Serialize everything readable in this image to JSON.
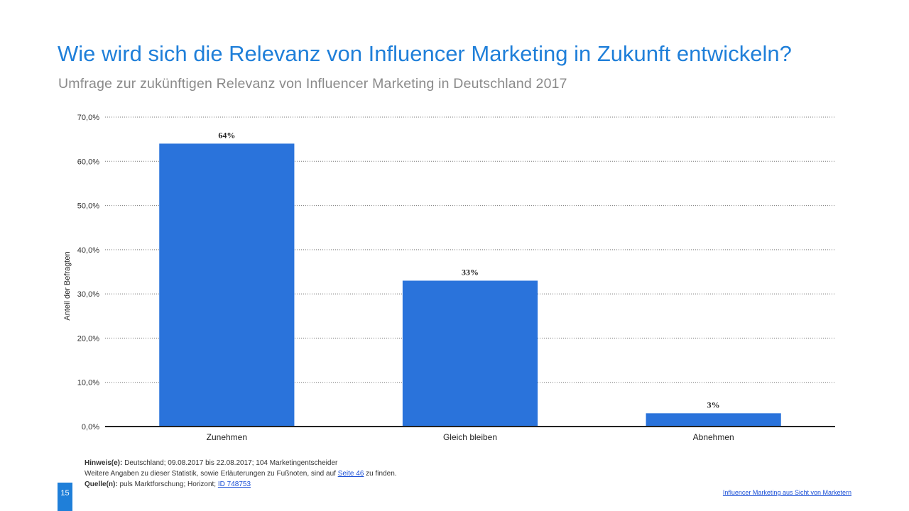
{
  "header": {
    "title": "Wie wird sich die Relevanz von Influencer Marketing in Zukunft entwickeln?",
    "subtitle": "Umfrage zur zukünftigen Relevanz von Influencer Marketing in Deutschland 2017"
  },
  "chart_data": {
    "type": "bar",
    "title": "",
    "xlabel": "",
    "ylabel": "Anteil der Befragten",
    "categories": [
      "Zunehmen",
      "Gleich bleiben",
      "Abnehmen"
    ],
    "values": [
      64,
      33,
      3
    ],
    "data_labels": [
      "64%",
      "33%",
      "3%"
    ],
    "ylim": [
      0,
      70
    ],
    "yticks": [
      0,
      10,
      20,
      30,
      40,
      50,
      60,
      70
    ],
    "ytick_labels": [
      "0,0%",
      "10,0%",
      "20,0%",
      "30,0%",
      "40,0%",
      "50,0%",
      "60,0%",
      "70,0%"
    ],
    "grid": true,
    "bar_color": "#2a73db"
  },
  "notes": {
    "hinweis_label": "Hinweis(e):",
    "hinweis_text": "Deutschland; 09.08.2017 bis 22.08.2017; 104 Marketingentscheider",
    "weitere_pre": "Weitere Angaben zu dieser Statistik, sowie Erläuterungen zu Fußnoten, sind auf",
    "weitere_link": "Seite 46",
    "weitere_post": "zu finden.",
    "quelle_label": "Quelle(n):",
    "quelle_text": "puls Marktforschung; Horizont;",
    "quelle_link": "ID 748753"
  },
  "footer": {
    "page_number": "15",
    "link_text": "Influencer Marketing aus Sicht von Marketern"
  },
  "colors": {
    "accent": "#1f7fd9",
    "bar": "#2a73db",
    "link": "#1a4fd6"
  }
}
